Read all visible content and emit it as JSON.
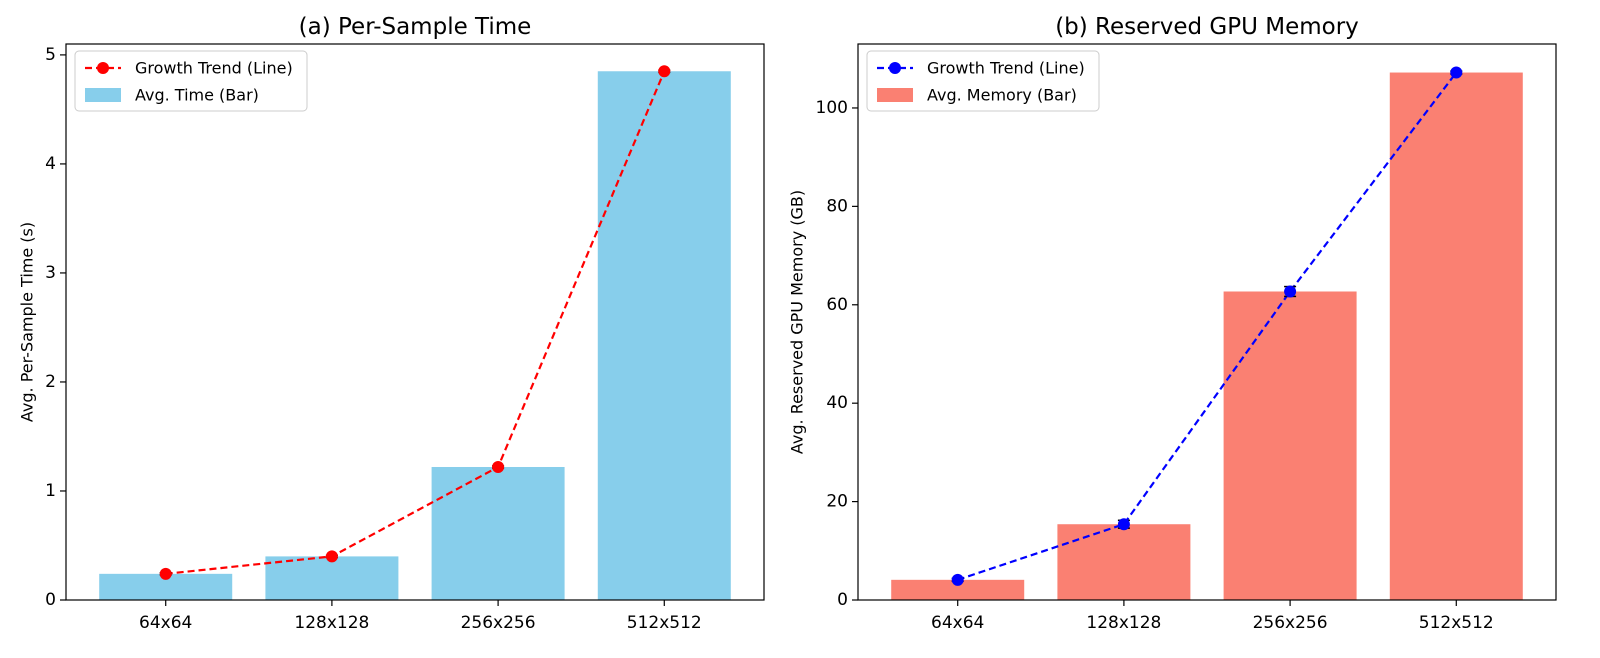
{
  "chart_data": [
    {
      "type": "bar",
      "title": "(a) Per-Sample Time",
      "xlabel": "",
      "ylabel": "Avg. Per-Sample Time (s)",
      "categories": [
        "64x64",
        "128x128",
        "256x256",
        "512x512"
      ],
      "ylim": [
        0,
        5.1
      ],
      "yticks": [
        0,
        1,
        2,
        3,
        4,
        5
      ],
      "grid": false,
      "legend_position": "top-left",
      "series": [
        {
          "name": "Avg. Time (Bar)",
          "kind": "bar",
          "color": "#87ceeb",
          "values": [
            0.24,
            0.4,
            1.22,
            4.85
          ]
        },
        {
          "name": "Growth Trend (Line)",
          "kind": "line",
          "style": "dashed",
          "marker": "circle",
          "color": "#ff0000",
          "values": [
            0.24,
            0.4,
            1.22,
            4.85
          ],
          "errors": [
            0.01,
            0.01,
            0.01,
            0.01
          ]
        }
      ]
    },
    {
      "type": "bar",
      "title": "(b) Reserved GPU Memory",
      "xlabel": "",
      "ylabel": "Avg. Reserved GPU Memory (GB)",
      "categories": [
        "64x64",
        "128x128",
        "256x256",
        "512x512"
      ],
      "ylim": [
        0,
        113
      ],
      "yticks": [
        0,
        20,
        40,
        60,
        80,
        100
      ],
      "grid": false,
      "legend_position": "top-left",
      "series": [
        {
          "name": "Avg. Memory (Bar)",
          "kind": "bar",
          "color": "#fa8072",
          "values": [
            4.1,
            15.4,
            62.7,
            107.2
          ]
        },
        {
          "name": "Growth Trend (Line)",
          "kind": "line",
          "style": "dashed",
          "marker": "circle",
          "color": "#0000ff",
          "values": [
            4.1,
            15.4,
            62.7,
            107.2
          ],
          "errors": [
            0.3,
            0.8,
            1.0,
            0.3
          ]
        }
      ]
    }
  ]
}
